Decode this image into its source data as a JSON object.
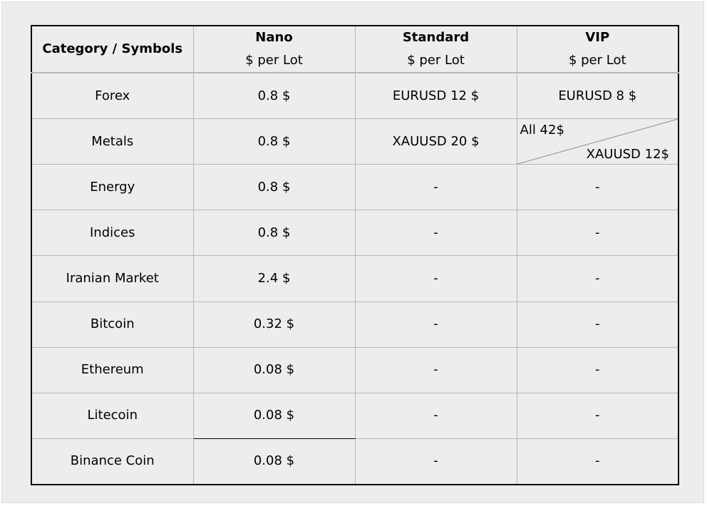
{
  "header": {
    "category": "Category / Symbols",
    "columns": [
      {
        "name": "Nano",
        "unit": "$ per Lot"
      },
      {
        "name": "Standard",
        "unit": "$ per Lot"
      },
      {
        "name": "VIP",
        "unit": "$ per Lot"
      }
    ]
  },
  "rows": [
    {
      "category": "Forex",
      "nano": "0.8 $",
      "standard": "EURUSD 12 $",
      "vip": "EURUSD 8 $"
    },
    {
      "category": "Metals",
      "nano": "0.8 $",
      "standard": "XAUUSD 20 $",
      "vip_all": "All 42$",
      "vip_xau": "XAUUSD 12$"
    },
    {
      "category": "Energy",
      "nano": "0.8 $",
      "standard": "-",
      "vip": "-"
    },
    {
      "category": "Indices",
      "nano": "0.8 $",
      "standard": "-",
      "vip": "-"
    },
    {
      "category": "Iranian Market",
      "nano": "2.4 $",
      "standard": "-",
      "vip": "-"
    },
    {
      "category": "Bitcoin",
      "nano": "0.32 $",
      "standard": "-",
      "vip": "-"
    },
    {
      "category": "Ethereum",
      "nano": "0.08 $",
      "standard": "-",
      "vip": "-"
    },
    {
      "category": "Litecoin",
      "nano": "0.08 $",
      "standard": "-",
      "vip": "-"
    },
    {
      "category": "Binance Coin",
      "nano": "0.08 $",
      "standard": "-",
      "vip": "-"
    }
  ],
  "colors": {
    "panel_background": "#ededed",
    "table_border": "#000000",
    "grid_lines": "#b8b8b8"
  }
}
